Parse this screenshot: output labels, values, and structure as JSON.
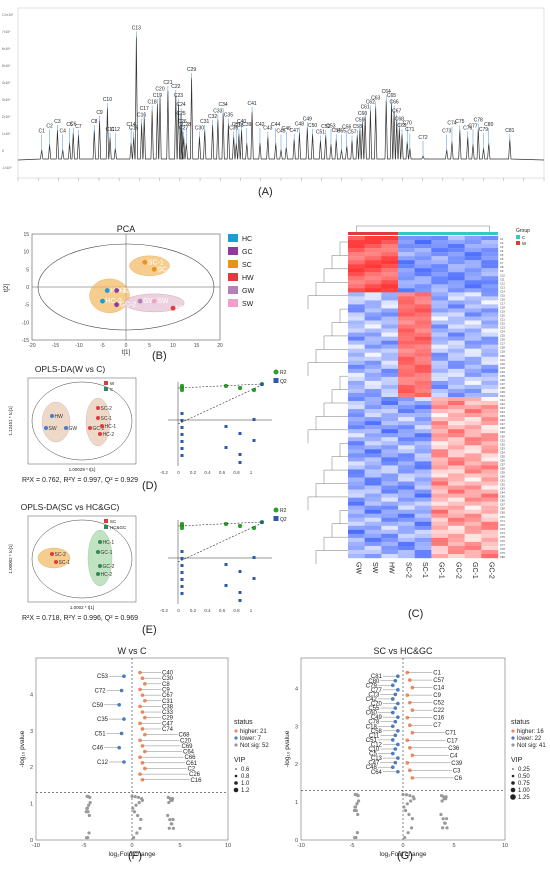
{
  "panel_labels": {
    "A": "(A)",
    "B": "(B)",
    "C": "(C)",
    "D": "(D)",
    "E": "(E)",
    "F": "(F)",
    "G": "(G)"
  },
  "chromatogram": {
    "y_ticks": [
      "1.0×10⁹",
      "7×10⁸",
      "6×10⁸",
      "5×10⁸",
      "4×10⁸",
      "3×10⁸",
      "2×10⁸",
      "1×10⁸",
      "0",
      "-1×10⁸"
    ],
    "peaks": [
      {
        "name": "C1",
        "x": 0.045,
        "y": 0.05
      },
      {
        "name": "C2",
        "x": 0.06,
        "y": 0.09
      },
      {
        "name": "C3",
        "x": 0.075,
        "y": 0.2
      },
      {
        "name": "C4",
        "x": 0.085,
        "y": 0.05
      },
      {
        "name": "C5",
        "x": 0.098,
        "y": 0.1
      },
      {
        "name": "C6",
        "x": 0.105,
        "y": 0.18
      },
      {
        "name": "C7",
        "x": 0.115,
        "y": 0.16
      },
      {
        "name": "C8",
        "x": 0.145,
        "y": 0.2
      },
      {
        "name": "C9",
        "x": 0.155,
        "y": 0.27
      },
      {
        "name": "C10",
        "x": 0.17,
        "y": 0.37
      },
      {
        "name": "C11",
        "x": 0.175,
        "y": 0.14
      },
      {
        "name": "C12",
        "x": 0.185,
        "y": 0.06
      },
      {
        "name": "C13",
        "x": 0.225,
        "y": 0.92
      },
      {
        "name": "C14",
        "x": 0.215,
        "y": 0.1
      },
      {
        "name": "C15",
        "x": 0.22,
        "y": 0.15
      },
      {
        "name": "C16",
        "x": 0.235,
        "y": 0.25
      },
      {
        "name": "C17",
        "x": 0.24,
        "y": 0.3
      },
      {
        "name": "C18",
        "x": 0.255,
        "y": 0.35
      },
      {
        "name": "C19",
        "x": 0.265,
        "y": 0.4
      },
      {
        "name": "C20",
        "x": 0.27,
        "y": 0.45
      },
      {
        "name": "C21",
        "x": 0.285,
        "y": 0.5
      },
      {
        "name": "C22",
        "x": 0.3,
        "y": 0.47
      },
      {
        "name": "C23",
        "x": 0.305,
        "y": 0.4
      },
      {
        "name": "C24",
        "x": 0.31,
        "y": 0.33
      },
      {
        "name": "C25",
        "x": 0.31,
        "y": 0.26
      },
      {
        "name": "C26",
        "x": 0.312,
        "y": 0.2
      },
      {
        "name": "C27",
        "x": 0.315,
        "y": 0.15
      },
      {
        "name": "C28",
        "x": 0.32,
        "y": 0.1
      },
      {
        "name": "C29",
        "x": 0.33,
        "y": 0.6
      },
      {
        "name": "C30",
        "x": 0.345,
        "y": 0.15
      },
      {
        "name": "C31",
        "x": 0.355,
        "y": 0.2
      },
      {
        "name": "C32",
        "x": 0.37,
        "y": 0.24
      },
      {
        "name": "C33",
        "x": 0.38,
        "y": 0.28
      },
      {
        "name": "C34",
        "x": 0.39,
        "y": 0.33
      },
      {
        "name": "C35",
        "x": 0.4,
        "y": 0.25
      },
      {
        "name": "C36",
        "x": 0.41,
        "y": 0.15
      },
      {
        "name": "C37",
        "x": 0.415,
        "y": 0.1
      },
      {
        "name": "C38",
        "x": 0.42,
        "y": 0.17
      },
      {
        "name": "C39",
        "x": 0.435,
        "y": 0.1
      },
      {
        "name": "C40",
        "x": 0.425,
        "y": 0.2
      },
      {
        "name": "C41",
        "x": 0.445,
        "y": 0.34
      },
      {
        "name": "C42",
        "x": 0.46,
        "y": 0.1
      },
      {
        "name": "C43",
        "x": 0.475,
        "y": 0.15
      },
      {
        "name": "C44",
        "x": 0.49,
        "y": 0.1
      },
      {
        "name": "C45",
        "x": 0.5,
        "y": 0.05
      },
      {
        "name": "C46",
        "x": 0.51,
        "y": 0.07
      },
      {
        "name": "C47",
        "x": 0.525,
        "y": 0.13
      },
      {
        "name": "C48",
        "x": 0.535,
        "y": 0.18
      },
      {
        "name": "C49",
        "x": 0.55,
        "y": 0.22
      },
      {
        "name": "C50",
        "x": 0.56,
        "y": 0.17
      },
      {
        "name": "C51",
        "x": 0.575,
        "y": 0.12
      },
      {
        "name": "C52",
        "x": 0.585,
        "y": 0.16
      },
      {
        "name": "C53",
        "x": 0.595,
        "y": 0.09
      },
      {
        "name": "C54",
        "x": 0.605,
        "y": 0.13
      },
      {
        "name": "C55",
        "x": 0.615,
        "y": 0.05
      },
      {
        "name": "C56",
        "x": 0.625,
        "y": 0.08
      },
      {
        "name": "C57",
        "x": 0.635,
        "y": 0.12
      },
      {
        "name": "C58",
        "x": 0.645,
        "y": 0.16
      },
      {
        "name": "C59",
        "x": 0.65,
        "y": 0.21
      },
      {
        "name": "C60",
        "x": 0.655,
        "y": 0.26
      },
      {
        "name": "C61",
        "x": 0.66,
        "y": 0.31
      },
      {
        "name": "C62",
        "x": 0.67,
        "y": 0.35
      },
      {
        "name": "C63",
        "x": 0.68,
        "y": 0.38
      },
      {
        "name": "C64",
        "x": 0.7,
        "y": 0.43
      },
      {
        "name": "C65",
        "x": 0.71,
        "y": 0.4
      },
      {
        "name": "C66",
        "x": 0.715,
        "y": 0.35
      },
      {
        "name": "C67",
        "x": 0.72,
        "y": 0.28
      },
      {
        "name": "C68",
        "x": 0.725,
        "y": 0.22
      },
      {
        "name": "C69",
        "x": 0.73,
        "y": 0.17
      },
      {
        "name": "C70",
        "x": 0.74,
        "y": 0.11
      },
      {
        "name": "C71",
        "x": 0.745,
        "y": 0.06
      },
      {
        "name": "C72",
        "x": 0.77,
        "y": 0.0
      },
      {
        "name": "C73",
        "x": 0.815,
        "y": 0.05
      },
      {
        "name": "C74",
        "x": 0.825,
        "y": 0.11
      },
      {
        "name": "C75",
        "x": 0.84,
        "y": 0.2
      },
      {
        "name": "C76",
        "x": 0.855,
        "y": 0.15
      },
      {
        "name": "C77",
        "x": 0.865,
        "y": 0.09
      },
      {
        "name": "C78",
        "x": 0.875,
        "y": 0.21
      },
      {
        "name": "C79",
        "x": 0.885,
        "y": 0.06
      },
      {
        "name": "C80",
        "x": 0.895,
        "y": 0.1
      },
      {
        "name": "C81",
        "x": 0.935,
        "y": 0.13
      }
    ]
  },
  "pca": {
    "title": "PCA",
    "xlabel": "t[1]",
    "ylabel": "t[2]",
    "x_ticks": [
      "-20",
      "-15",
      "-10",
      "-5",
      "0",
      "5",
      "10",
      "15",
      "20"
    ],
    "y_ticks": [
      "15",
      "10",
      "5",
      "0",
      "-5",
      "-10",
      "-15"
    ],
    "legend": [
      {
        "label": "HC",
        "color": "#1a9ed9"
      },
      {
        "label": "GC",
        "color": "#8e3a9e"
      },
      {
        "label": "SC",
        "color": "#e8941a"
      },
      {
        "label": "HW",
        "color": "#e03b3b"
      },
      {
        "label": "GW",
        "color": "#b57fb8"
      },
      {
        "label": "SW",
        "color": "#f0a0c8"
      }
    ],
    "points": [
      {
        "label": "SC-1",
        "x": 4,
        "y": 7
      },
      {
        "label": "SC-2",
        "x": 6,
        "y": 5
      },
      {
        "label": "HC-1",
        "x": -4,
        "y": -1
      },
      {
        "label": "HC-2",
        "x": -5,
        "y": -4
      },
      {
        "label": "GC-1",
        "x": -2,
        "y": -1
      },
      {
        "label": "GC-2",
        "x": -2,
        "y": -5
      },
      {
        "label": "GW",
        "x": 3,
        "y": -4
      },
      {
        "label": "SW",
        "x": 6,
        "y": -4
      },
      {
        "label": "HW",
        "x": 10,
        "y": -6
      }
    ]
  },
  "oplsda_wc": {
    "title": "OPLS-DA(W vs C)",
    "xlabel": "1.00029 * t[1]",
    "ylabel": "1.12451 * to[1]",
    "legend": [
      "W",
      "C"
    ],
    "stats": "R²X = 0.762, R²Y = 0.997, Q² = 0.929",
    "points": [
      "SC-2",
      "SC-1",
      "GC-2",
      "HC-1",
      "HC-2",
      "HW",
      "GW",
      "SW"
    ]
  },
  "oplsda_sc": {
    "title": "OPLS-DA(SC vs HC&GC)",
    "xlabel": "1.0002 * t[1]",
    "ylabel": "1.00002 * to[1]",
    "legend": [
      "SC",
      "HC&GC"
    ],
    "stats": "R²X = 0.718, R²Y = 0.996, Q² = 0.969",
    "points": [
      "SC-2",
      "SC-1",
      "HC-1",
      "GC-1",
      "GC-2",
      "HC-2"
    ]
  },
  "perm_legend": [
    "R2",
    "Q2"
  ],
  "heatmap": {
    "samples": [
      "GW",
      "SW",
      "HW",
      "SC-2",
      "SC-1",
      "GC-1",
      "GC-2",
      "GC-1",
      "GC-2"
    ],
    "group_label": "Group",
    "group_legend": [
      {
        "label": "C",
        "color": "#33c8c8"
      },
      {
        "label": "W",
        "color": "#e03b3b"
      }
    ]
  },
  "volcano_wc": {
    "title": "W vs C",
    "xlabel": "log₂Fold change",
    "ylabel": "-log₁₀ pvalue",
    "x_ticks": [
      "-10",
      "-5",
      "0",
      "5",
      "10"
    ],
    "y_ticks": [
      "0",
      "1",
      "2",
      "3",
      "4"
    ],
    "status_title": "status",
    "status": [
      {
        "label": "higher: 21",
        "color": "#f08a5d"
      },
      {
        "label": "lower: 7",
        "color": "#4a7cc4"
      },
      {
        "label": "Not sig: 52",
        "color": "#999999"
      }
    ],
    "vip_title": "VIP",
    "vip": [
      "0.6",
      "0.8",
      "1.0",
      "1.2"
    ],
    "labels_left": [
      "C53",
      "C72",
      "C59",
      "C35",
      "C51",
      "C46",
      "C12"
    ],
    "labels_right": [
      "C40",
      "C30",
      "C8",
      "C9",
      "C67",
      "C31",
      "C38",
      "C33",
      "C29",
      "C47",
      "C74",
      "C68",
      "C20",
      "C69",
      "C64",
      "C66",
      "C61",
      "C2",
      "C26",
      "C16"
    ]
  },
  "volcano_sc": {
    "title": "SC vs HC&GC",
    "xlabel": "log₂Fold change",
    "ylabel": "-log₁₀ pvalue",
    "x_ticks": [
      "-10",
      "-5",
      "0",
      "5",
      "10"
    ],
    "y_ticks": [
      "0",
      "1",
      "2",
      "3",
      "4"
    ],
    "status_title": "status",
    "status": [
      {
        "label": "higher: 16",
        "color": "#f08a5d"
      },
      {
        "label": "lower: 22",
        "color": "#4a7cc4"
      },
      {
        "label": "Not sig: 41",
        "color": "#999999"
      }
    ],
    "vip_title": "VIP",
    "vip": [
      "0.25",
      "0.50",
      "0.75",
      "1.00",
      "1.25"
    ],
    "labels_left": [
      "C81",
      "C80",
      "C79",
      "C77",
      "C73",
      "C42",
      "C70",
      "C55",
      "C60",
      "C49",
      "C78",
      "C18",
      "C58",
      "C11",
      "C51",
      "C12",
      "C10",
      "C5",
      "C13",
      "C47",
      "C48",
      "C64"
    ],
    "labels_right": [
      "C1",
      "C57",
      "C14",
      "C9",
      "C52",
      "C22",
      "C16",
      "C7",
      "C71",
      "C17",
      "C36",
      "C4",
      "C39",
      "C3",
      "C6"
    ]
  }
}
